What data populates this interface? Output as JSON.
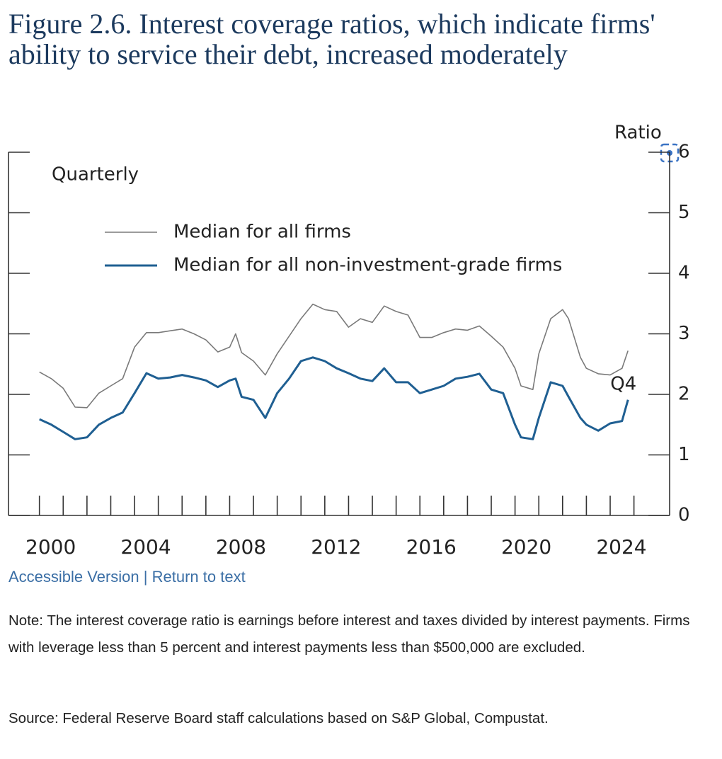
{
  "chart_data": {
    "type": "line",
    "title": "Figure 2.6. Interest coverage ratios, which indicate firms' ability to service their debt, increased moderately",
    "subtitle": "Quarterly",
    "y_axis_label": "Ratio",
    "annotations": [
      "Q4"
    ],
    "x": [
      2000,
      2000.5,
      2001,
      2001.5,
      2002,
      2002.5,
      2003,
      2003.5,
      2004,
      2004.5,
      2005,
      2005.5,
      2006,
      2006.5,
      2007,
      2007.5,
      2008,
      2008.25,
      2008.5,
      2009,
      2009.5,
      2010,
      2010.5,
      2011,
      2011.5,
      2012,
      2012.5,
      2013,
      2013.5,
      2014,
      2014.5,
      2015,
      2015.5,
      2016,
      2016.5,
      2017,
      2017.5,
      2018,
      2018.5,
      2019,
      2019.5,
      2020,
      2020.25,
      2020.75,
      2021,
      2021.5,
      2022,
      2022.25,
      2022.75,
      2023,
      2023.5,
      2024,
      2024.5,
      2024.75
    ],
    "series": [
      {
        "name": "Median for all firms",
        "color": "#7a7a7a",
        "values": [
          2.37,
          2.26,
          2.1,
          1.79,
          1.78,
          2.02,
          2.14,
          2.26,
          2.78,
          3.02,
          3.02,
          3.05,
          3.08,
          3.0,
          2.9,
          2.7,
          2.78,
          3.0,
          2.69,
          2.55,
          2.32,
          2.67,
          2.96,
          3.25,
          3.49,
          3.4,
          3.37,
          3.11,
          3.25,
          3.19,
          3.46,
          3.37,
          3.31,
          2.94,
          2.94,
          3.02,
          3.08,
          3.06,
          3.13,
          2.96,
          2.78,
          2.43,
          2.14,
          2.08,
          2.67,
          3.25,
          3.4,
          3.25,
          2.61,
          2.43,
          2.34,
          2.32,
          2.43,
          2.72
        ]
      },
      {
        "name": "Median for all non-investment-grade firms",
        "color": "#1f5f92",
        "values": [
          1.59,
          1.5,
          1.38,
          1.26,
          1.29,
          1.5,
          1.61,
          1.7,
          2.02,
          2.35,
          2.26,
          2.28,
          2.32,
          2.28,
          2.23,
          2.12,
          2.23,
          2.26,
          1.96,
          1.91,
          1.61,
          2.02,
          2.26,
          2.55,
          2.61,
          2.55,
          2.43,
          2.35,
          2.26,
          2.22,
          2.43,
          2.2,
          2.2,
          2.02,
          2.08,
          2.14,
          2.26,
          2.29,
          2.34,
          2.08,
          2.02,
          1.5,
          1.29,
          1.26,
          1.61,
          2.2,
          2.14,
          1.96,
          1.61,
          1.5,
          1.4,
          1.52,
          1.56,
          1.91
        ]
      }
    ],
    "xlim": [
      1998.7,
      2026.5
    ],
    "xticks": [
      2000,
      2004,
      2008,
      2012,
      2016,
      2020,
      2024
    ],
    "xminorticks": [
      2000,
      2001,
      2002,
      2003,
      2004,
      2005,
      2006,
      2007,
      2008,
      2009,
      2010,
      2011,
      2012,
      2013,
      2014,
      2015,
      2016,
      2017,
      2018,
      2019,
      2020,
      2021,
      2022,
      2023,
      2024,
      2025
    ],
    "ylim": [
      0,
      6
    ],
    "yticks": [
      0,
      1,
      2,
      3,
      4,
      5,
      6
    ],
    "y_axis_side": "right",
    "grid": false
  },
  "links": [
    "Accessible Version",
    "Return to text"
  ],
  "link_separator": "|",
  "note": "Note: The interest coverage ratio is earnings before interest and taxes divided by interest payments. Firms with leverage less than 5 percent and interest payments less than $500,000 are excluded.",
  "source": "Source: Federal Reserve Board staff calculations based on S&P Global, Compustat."
}
